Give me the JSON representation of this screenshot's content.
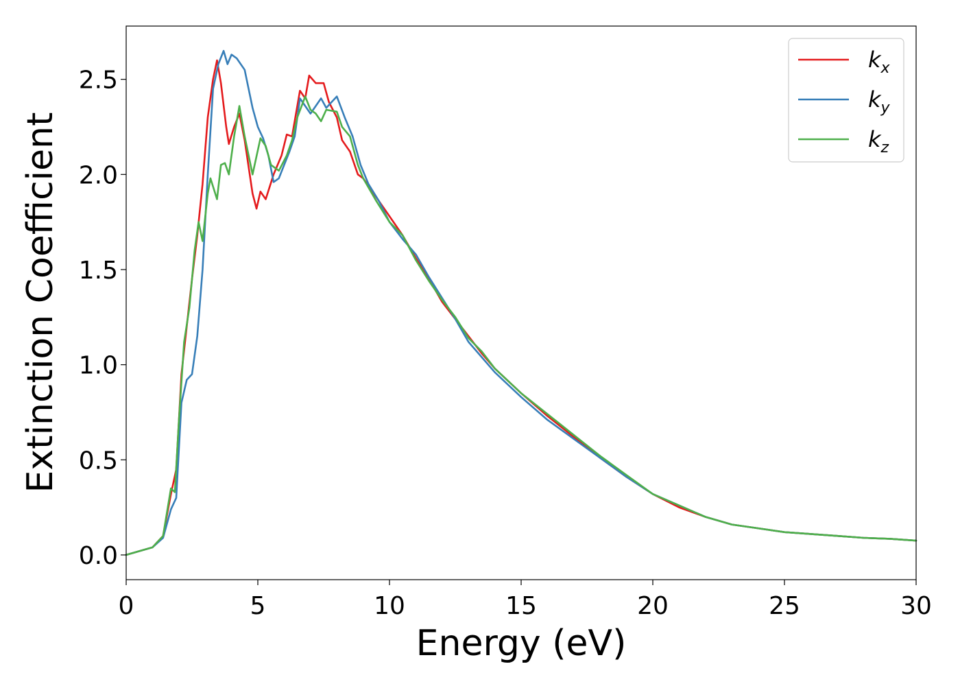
{
  "chart_data": {
    "type": "line",
    "title": "",
    "xlabel": "Energy (eV)",
    "ylabel": "Extinction Coefficient",
    "xlim": [
      0,
      30
    ],
    "ylim": [
      -0.13,
      2.78
    ],
    "xticks": [
      0,
      5,
      10,
      15,
      20,
      25,
      30
    ],
    "xtick_labels": [
      "0",
      "5",
      "10",
      "15",
      "20",
      "25",
      "30"
    ],
    "yticks": [
      0.0,
      0.5,
      1.0,
      1.5,
      2.0,
      2.5
    ],
    "ytick_labels": [
      "0.0",
      "0.5",
      "1.0",
      "1.5",
      "2.0",
      "2.5"
    ],
    "grid": false,
    "legend_position": "top-right",
    "series": [
      {
        "name": "k",
        "subscript": "x",
        "color": "#e41a1c",
        "points": [
          [
            0,
            0
          ],
          [
            0.5,
            0.02
          ],
          [
            1.0,
            0.04
          ],
          [
            1.4,
            0.1
          ],
          [
            1.7,
            0.32
          ],
          [
            1.9,
            0.45
          ],
          [
            2.1,
            0.95
          ],
          [
            2.3,
            1.2
          ],
          [
            2.5,
            1.45
          ],
          [
            2.7,
            1.68
          ],
          [
            2.9,
            1.95
          ],
          [
            3.1,
            2.3
          ],
          [
            3.3,
            2.5
          ],
          [
            3.45,
            2.6
          ],
          [
            3.6,
            2.48
          ],
          [
            3.8,
            2.25
          ],
          [
            3.9,
            2.16
          ],
          [
            4.1,
            2.25
          ],
          [
            4.3,
            2.32
          ],
          [
            4.5,
            2.18
          ],
          [
            4.8,
            1.9
          ],
          [
            4.95,
            1.82
          ],
          [
            5.1,
            1.91
          ],
          [
            5.3,
            1.87
          ],
          [
            5.6,
            2.0
          ],
          [
            5.9,
            2.1
          ],
          [
            6.1,
            2.21
          ],
          [
            6.3,
            2.2
          ],
          [
            6.6,
            2.44
          ],
          [
            6.8,
            2.4
          ],
          [
            6.95,
            2.52
          ],
          [
            7.2,
            2.48
          ],
          [
            7.5,
            2.48
          ],
          [
            7.7,
            2.38
          ],
          [
            8.0,
            2.3
          ],
          [
            8.2,
            2.18
          ],
          [
            8.5,
            2.12
          ],
          [
            8.8,
            2.0
          ],
          [
            9.0,
            1.98
          ],
          [
            9.5,
            1.88
          ],
          [
            10.0,
            1.78
          ],
          [
            10.5,
            1.68
          ],
          [
            11.0,
            1.56
          ],
          [
            11.5,
            1.45
          ],
          [
            12.0,
            1.33
          ],
          [
            12.5,
            1.24
          ],
          [
            13.0,
            1.15
          ],
          [
            13.5,
            1.06
          ],
          [
            14.0,
            0.98
          ],
          [
            15.0,
            0.85
          ],
          [
            16.0,
            0.73
          ],
          [
            17.0,
            0.62
          ],
          [
            18.0,
            0.51
          ],
          [
            19.0,
            0.41
          ],
          [
            20.0,
            0.32
          ],
          [
            21.0,
            0.25
          ],
          [
            22.0,
            0.2
          ],
          [
            23.0,
            0.16
          ],
          [
            24.0,
            0.14
          ],
          [
            25.0,
            0.12
          ],
          [
            26.0,
            0.11
          ],
          [
            27.0,
            0.1
          ],
          [
            28.0,
            0.09
          ],
          [
            29.0,
            0.085
          ],
          [
            30.0,
            0.075
          ]
        ]
      },
      {
        "name": "k",
        "subscript": "y",
        "color": "#377eb8",
        "points": [
          [
            0,
            0
          ],
          [
            0.5,
            0.02
          ],
          [
            1.0,
            0.04
          ],
          [
            1.4,
            0.09
          ],
          [
            1.7,
            0.24
          ],
          [
            1.9,
            0.3
          ],
          [
            2.1,
            0.8
          ],
          [
            2.3,
            0.92
          ],
          [
            2.5,
            0.95
          ],
          [
            2.7,
            1.15
          ],
          [
            2.9,
            1.5
          ],
          [
            3.1,
            2.0
          ],
          [
            3.3,
            2.45
          ],
          [
            3.5,
            2.58
          ],
          [
            3.7,
            2.65
          ],
          [
            3.85,
            2.58
          ],
          [
            4.0,
            2.63
          ],
          [
            4.2,
            2.61
          ],
          [
            4.5,
            2.55
          ],
          [
            4.8,
            2.35
          ],
          [
            5.0,
            2.25
          ],
          [
            5.2,
            2.19
          ],
          [
            5.4,
            2.1
          ],
          [
            5.6,
            1.96
          ],
          [
            5.8,
            1.98
          ],
          [
            6.0,
            2.05
          ],
          [
            6.2,
            2.12
          ],
          [
            6.4,
            2.2
          ],
          [
            6.6,
            2.4
          ],
          [
            6.8,
            2.36
          ],
          [
            7.0,
            2.32
          ],
          [
            7.2,
            2.36
          ],
          [
            7.4,
            2.4
          ],
          [
            7.6,
            2.35
          ],
          [
            7.8,
            2.38
          ],
          [
            8.0,
            2.41
          ],
          [
            8.3,
            2.3
          ],
          [
            8.6,
            2.2
          ],
          [
            8.9,
            2.05
          ],
          [
            9.2,
            1.95
          ],
          [
            9.6,
            1.86
          ],
          [
            10.0,
            1.75
          ],
          [
            10.5,
            1.66
          ],
          [
            11.0,
            1.58
          ],
          [
            11.5,
            1.46
          ],
          [
            12.0,
            1.35
          ],
          [
            12.5,
            1.24
          ],
          [
            13.0,
            1.12
          ],
          [
            13.5,
            1.04
          ],
          [
            14.0,
            0.96
          ],
          [
            15.0,
            0.83
          ],
          [
            16.0,
            0.71
          ],
          [
            17.0,
            0.61
          ],
          [
            18.0,
            0.51
          ],
          [
            19.0,
            0.41
          ],
          [
            20.0,
            0.32
          ],
          [
            21.0,
            0.26
          ],
          [
            22.0,
            0.2
          ],
          [
            23.0,
            0.16
          ],
          [
            24.0,
            0.14
          ],
          [
            25.0,
            0.12
          ],
          [
            26.0,
            0.11
          ],
          [
            27.0,
            0.1
          ],
          [
            28.0,
            0.09
          ],
          [
            29.0,
            0.085
          ],
          [
            30.0,
            0.075
          ]
        ]
      },
      {
        "name": "k",
        "subscript": "z",
        "color": "#4daf4a",
        "points": [
          [
            0,
            0
          ],
          [
            0.5,
            0.02
          ],
          [
            1.0,
            0.04
          ],
          [
            1.4,
            0.1
          ],
          [
            1.7,
            0.35
          ],
          [
            1.85,
            0.33
          ],
          [
            2.0,
            0.7
          ],
          [
            2.2,
            1.12
          ],
          [
            2.4,
            1.3
          ],
          [
            2.6,
            1.6
          ],
          [
            2.75,
            1.75
          ],
          [
            2.9,
            1.65
          ],
          [
            3.1,
            1.9
          ],
          [
            3.2,
            1.98
          ],
          [
            3.45,
            1.87
          ],
          [
            3.6,
            2.05
          ],
          [
            3.75,
            2.06
          ],
          [
            3.9,
            2.0
          ],
          [
            4.1,
            2.2
          ],
          [
            4.3,
            2.36
          ],
          [
            4.5,
            2.2
          ],
          [
            4.8,
            2.0
          ],
          [
            5.1,
            2.19
          ],
          [
            5.3,
            2.15
          ],
          [
            5.5,
            2.05
          ],
          [
            5.8,
            2.02
          ],
          [
            6.1,
            2.1
          ],
          [
            6.3,
            2.18
          ],
          [
            6.5,
            2.3
          ],
          [
            6.8,
            2.41
          ],
          [
            7.0,
            2.34
          ],
          [
            7.2,
            2.32
          ],
          [
            7.4,
            2.28
          ],
          [
            7.6,
            2.34
          ],
          [
            8.0,
            2.33
          ],
          [
            8.2,
            2.25
          ],
          [
            8.5,
            2.2
          ],
          [
            8.8,
            2.05
          ],
          [
            9.0,
            1.98
          ],
          [
            9.5,
            1.86
          ],
          [
            10.0,
            1.75
          ],
          [
            10.5,
            1.68
          ],
          [
            11.0,
            1.55
          ],
          [
            11.5,
            1.44
          ],
          [
            12.0,
            1.34
          ],
          [
            12.5,
            1.25
          ],
          [
            13.0,
            1.14
          ],
          [
            13.5,
            1.07
          ],
          [
            14.0,
            0.98
          ],
          [
            15.0,
            0.85
          ],
          [
            16.0,
            0.74
          ],
          [
            17.0,
            0.63
          ],
          [
            18.0,
            0.52
          ],
          [
            19.0,
            0.42
          ],
          [
            20.0,
            0.32
          ],
          [
            21.0,
            0.26
          ],
          [
            22.0,
            0.2
          ],
          [
            23.0,
            0.16
          ],
          [
            24.0,
            0.14
          ],
          [
            25.0,
            0.12
          ],
          [
            26.0,
            0.11
          ],
          [
            27.0,
            0.1
          ],
          [
            28.0,
            0.09
          ],
          [
            29.0,
            0.085
          ],
          [
            30.0,
            0.075
          ]
        ]
      }
    ]
  }
}
